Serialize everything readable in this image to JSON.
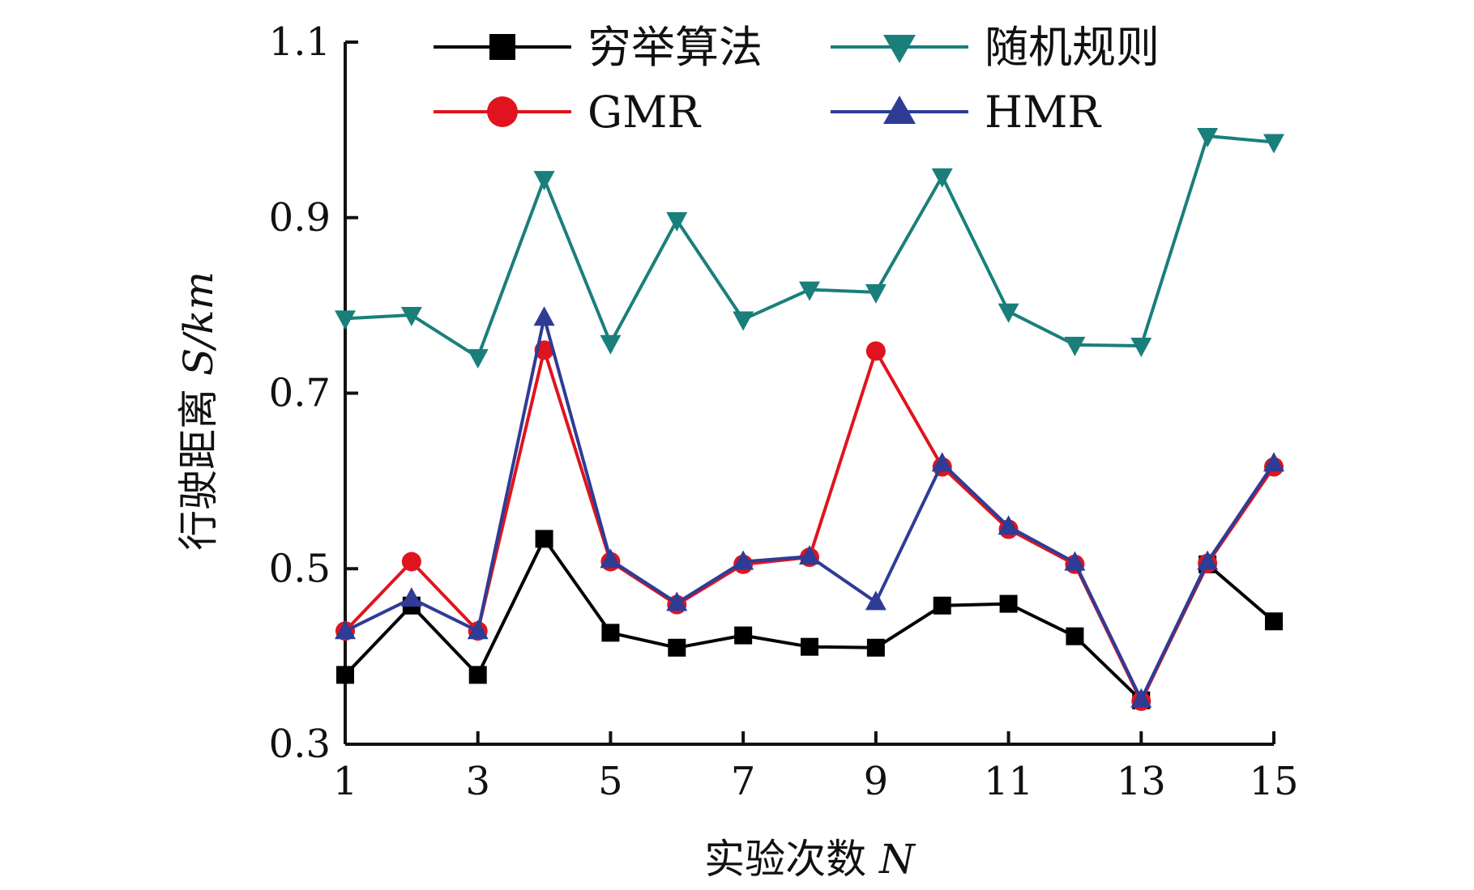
{
  "chart_data": {
    "type": "line",
    "xlabel": "实验次数",
    "xlabel_var": "N",
    "ylabel": "行驶距离",
    "ylabel_unit": "S/km",
    "x": [
      1,
      2,
      3,
      4,
      5,
      6,
      7,
      8,
      9,
      10,
      11,
      12,
      13,
      14,
      15
    ],
    "xticks": [
      1,
      3,
      5,
      7,
      9,
      11,
      13,
      15
    ],
    "xtick_labels": [
      "1",
      "3",
      "5",
      "7",
      "9",
      "11",
      "13",
      "15"
    ],
    "xlim": [
      1,
      15
    ],
    "yticks": [
      0.3,
      0.5,
      0.7,
      0.9,
      1.1
    ],
    "ytick_labels": [
      "0.3",
      "0.5",
      "0.7",
      "0.9",
      "1.1"
    ],
    "ylim": [
      0.3,
      1.1
    ],
    "grid": false,
    "legend_position": "top",
    "series": [
      {
        "name": "穷举算法",
        "color": "#000000",
        "marker": "square",
        "values": [
          0.379,
          0.458,
          0.379,
          0.534,
          0.427,
          0.41,
          0.424,
          0.411,
          0.41,
          0.458,
          0.46,
          0.423,
          0.35,
          0.505,
          0.44
        ]
      },
      {
        "name": "随机规则",
        "color": "#1a7f7a",
        "marker": "triangle-down",
        "values": [
          0.785,
          0.789,
          0.741,
          0.944,
          0.757,
          0.897,
          0.784,
          0.818,
          0.815,
          0.947,
          0.793,
          0.755,
          0.754,
          0.993,
          0.986
        ]
      },
      {
        "name": "GMR",
        "color": "#e0141e",
        "marker": "circle",
        "values": [
          0.429,
          0.508,
          0.429,
          0.749,
          0.508,
          0.459,
          0.505,
          0.513,
          0.748,
          0.616,
          0.545,
          0.505,
          0.349,
          0.506,
          0.616
        ]
      },
      {
        "name": "HMR",
        "color": "#2e3c96",
        "marker": "triangle-up",
        "values": [
          0.429,
          0.466,
          0.429,
          0.786,
          0.51,
          0.461,
          0.508,
          0.514,
          0.462,
          0.62,
          0.548,
          0.507,
          0.351,
          0.508,
          0.62
        ]
      }
    ]
  }
}
